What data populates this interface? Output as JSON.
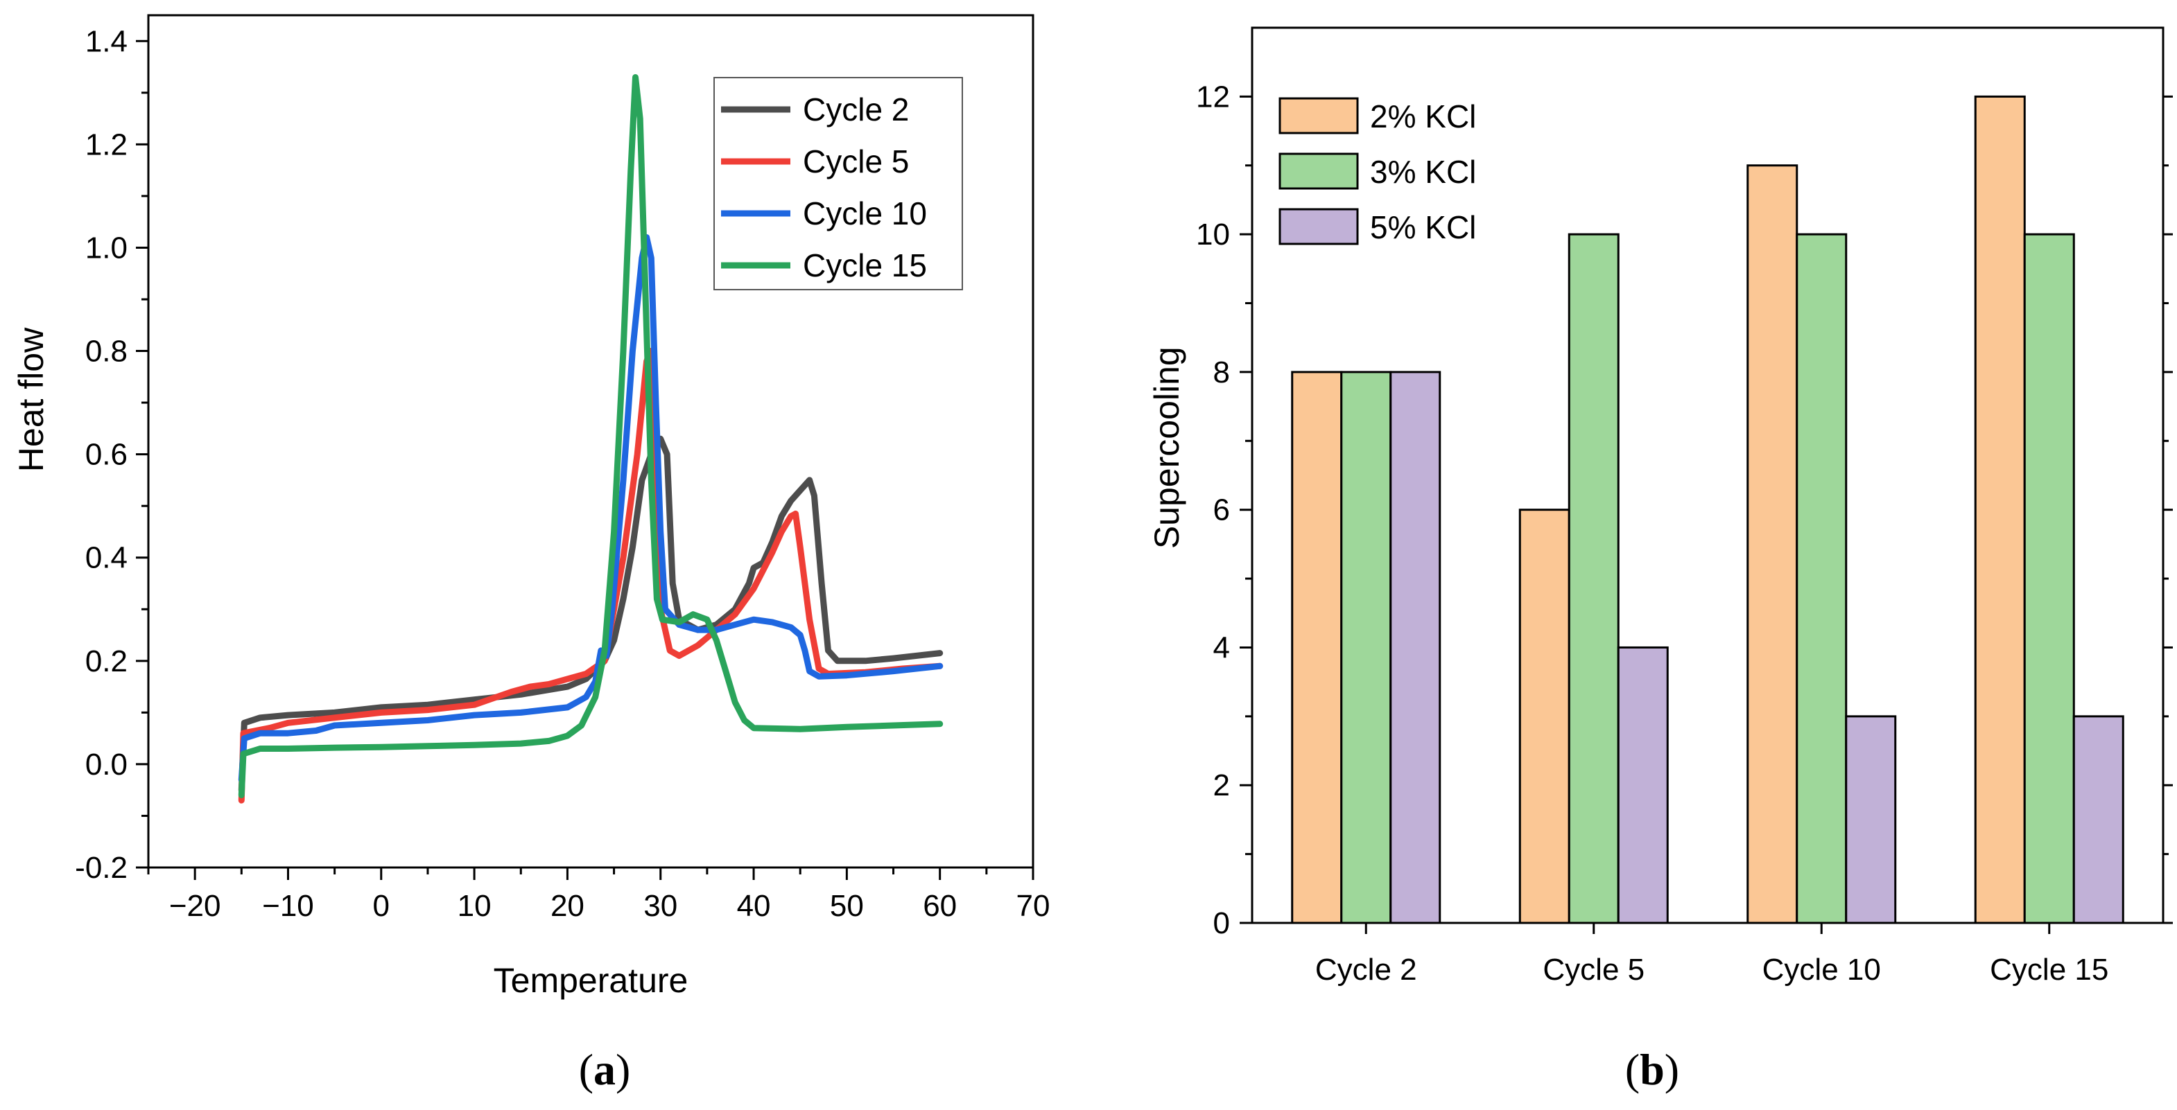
{
  "chart_data": [
    {
      "type": "line",
      "panel_label": {
        "open": "(",
        "letter": "a",
        "close": ")"
      },
      "xlabel": "Temperature",
      "ylabel": "Heat flow",
      "xlim": [
        -25,
        70
      ],
      "ylim": [
        -0.2,
        1.45
      ],
      "xticks": [
        -20,
        -10,
        0,
        10,
        20,
        30,
        40,
        50,
        60,
        70
      ],
      "xtick_labels": [
        "−20",
        "−10",
        "0",
        "10",
        "20",
        "30",
        "40",
        "50",
        "60",
        "70"
      ],
      "yticks": [
        -0.2,
        0.0,
        0.2,
        0.4,
        0.6,
        0.8,
        1.0,
        1.2,
        1.4
      ],
      "ytick_labels": [
        "-0.2",
        "0.0",
        "0.2",
        "0.4",
        "0.6",
        "0.8",
        "1.0",
        "1.2",
        "1.4"
      ],
      "legend_position": "top-right",
      "series": [
        {
          "name": "Cycle 2",
          "color": "#4d4d4d",
          "points": [
            [
              -15,
              -0.05
            ],
            [
              -14.7,
              0.08
            ],
            [
              -13,
              0.09
            ],
            [
              -10,
              0.095
            ],
            [
              -5,
              0.1
            ],
            [
              0,
              0.11
            ],
            [
              5,
              0.115
            ],
            [
              10,
              0.125
            ],
            [
              15,
              0.135
            ],
            [
              20,
              0.15
            ],
            [
              22,
              0.165
            ],
            [
              24,
              0.2
            ],
            [
              25,
              0.24
            ],
            [
              26,
              0.32
            ],
            [
              27,
              0.42
            ],
            [
              28,
              0.55
            ],
            [
              29,
              0.6
            ],
            [
              30,
              0.63
            ],
            [
              30.7,
              0.6
            ],
            [
              31.3,
              0.35
            ],
            [
              32,
              0.28
            ],
            [
              34,
              0.26
            ],
            [
              36,
              0.27
            ],
            [
              38,
              0.3
            ],
            [
              39.5,
              0.35
            ],
            [
              40,
              0.38
            ],
            [
              41,
              0.39
            ],
            [
              42,
              0.43
            ],
            [
              43,
              0.48
            ],
            [
              44,
              0.51
            ],
            [
              45,
              0.53
            ],
            [
              46,
              0.55
            ],
            [
              46.5,
              0.52
            ],
            [
              47.3,
              0.35
            ],
            [
              48,
              0.22
            ],
            [
              49,
              0.2
            ],
            [
              52,
              0.2
            ],
            [
              55,
              0.205
            ],
            [
              60,
              0.215
            ]
          ]
        },
        {
          "name": "Cycle 5",
          "color": "#ef3e36",
          "points": [
            [
              -15,
              -0.07
            ],
            [
              -14.8,
              0.06
            ],
            [
              -12,
              0.07
            ],
            [
              -10,
              0.08
            ],
            [
              -5,
              0.09
            ],
            [
              0,
              0.1
            ],
            [
              5,
              0.105
            ],
            [
              10,
              0.115
            ],
            [
              14,
              0.14
            ],
            [
              16,
              0.15
            ],
            [
              18,
              0.155
            ],
            [
              20,
              0.165
            ],
            [
              22,
              0.175
            ],
            [
              24,
              0.2
            ],
            [
              26,
              0.4
            ],
            [
              27.5,
              0.6
            ],
            [
              28.5,
              0.78
            ],
            [
              28.9,
              0.8
            ],
            [
              29.5,
              0.55
            ],
            [
              30,
              0.3
            ],
            [
              31,
              0.22
            ],
            [
              32,
              0.21
            ],
            [
              34,
              0.23
            ],
            [
              36,
              0.26
            ],
            [
              38,
              0.29
            ],
            [
              40,
              0.34
            ],
            [
              42,
              0.41
            ],
            [
              43,
              0.45
            ],
            [
              44,
              0.48
            ],
            [
              44.5,
              0.485
            ],
            [
              45,
              0.42
            ],
            [
              46,
              0.28
            ],
            [
              47,
              0.185
            ],
            [
              48,
              0.175
            ],
            [
              52,
              0.178
            ],
            [
              56,
              0.185
            ],
            [
              60,
              0.19
            ]
          ]
        },
        {
          "name": "Cycle 10",
          "color": "#1f67e0",
          "points": [
            [
              -15,
              -0.03
            ],
            [
              -14.7,
              0.05
            ],
            [
              -13,
              0.06
            ],
            [
              -10,
              0.06
            ],
            [
              -7,
              0.065
            ],
            [
              -5,
              0.075
            ],
            [
              0,
              0.08
            ],
            [
              5,
              0.085
            ],
            [
              10,
              0.095
            ],
            [
              15,
              0.1
            ],
            [
              20,
              0.11
            ],
            [
              22,
              0.13
            ],
            [
              23,
              0.16
            ],
            [
              23.6,
              0.22
            ],
            [
              24.2,
              0.21
            ],
            [
              24.8,
              0.3
            ],
            [
              26,
              0.55
            ],
            [
              27,
              0.8
            ],
            [
              28,
              0.98
            ],
            [
              28.5,
              1.02
            ],
            [
              29,
              0.98
            ],
            [
              29.5,
              0.7
            ],
            [
              30,
              0.45
            ],
            [
              30.5,
              0.3
            ],
            [
              32,
              0.27
            ],
            [
              34,
              0.26
            ],
            [
              36,
              0.26
            ],
            [
              38,
              0.27
            ],
            [
              40,
              0.28
            ],
            [
              42,
              0.275
            ],
            [
              44,
              0.265
            ],
            [
              45,
              0.25
            ],
            [
              45.5,
              0.22
            ],
            [
              46,
              0.18
            ],
            [
              47,
              0.17
            ],
            [
              50,
              0.172
            ],
            [
              55,
              0.18
            ],
            [
              60,
              0.19
            ]
          ]
        },
        {
          "name": "Cycle 15",
          "color": "#2aa45b",
          "points": [
            [
              -15,
              -0.06
            ],
            [
              -14.8,
              0.02
            ],
            [
              -13,
              0.03
            ],
            [
              -10,
              0.03
            ],
            [
              -5,
              0.032
            ],
            [
              0,
              0.033
            ],
            [
              5,
              0.035
            ],
            [
              10,
              0.037
            ],
            [
              15,
              0.04
            ],
            [
              18,
              0.045
            ],
            [
              20,
              0.055
            ],
            [
              21.5,
              0.075
            ],
            [
              23,
              0.13
            ],
            [
              24,
              0.22
            ],
            [
              25,
              0.45
            ],
            [
              26,
              0.8
            ],
            [
              26.8,
              1.15
            ],
            [
              27.3,
              1.33
            ],
            [
              27.8,
              1.25
            ],
            [
              28.4,
              0.9
            ],
            [
              29,
              0.55
            ],
            [
              29.6,
              0.32
            ],
            [
              30.2,
              0.28
            ],
            [
              32,
              0.275
            ],
            [
              33.5,
              0.29
            ],
            [
              35,
              0.28
            ],
            [
              36,
              0.24
            ],
            [
              37,
              0.18
            ],
            [
              38,
              0.12
            ],
            [
              39,
              0.085
            ],
            [
              40,
              0.07
            ],
            [
              45,
              0.068
            ],
            [
              50,
              0.072
            ],
            [
              55,
              0.075
            ],
            [
              60,
              0.078
            ]
          ]
        }
      ]
    },
    {
      "type": "bar",
      "panel_label": {
        "open": "(",
        "letter": "b",
        "close": ")"
      },
      "xlabel": "",
      "ylabel": "Supercooling",
      "ylim": [
        0,
        13
      ],
      "yticks": [
        0,
        2,
        4,
        6,
        8,
        10,
        12
      ],
      "ytick_labels": [
        "0",
        "2",
        "4",
        "6",
        "8",
        "10",
        "12"
      ],
      "categories": [
        "Cycle 2",
        "Cycle 5",
        "Cycle 10",
        "Cycle 15"
      ],
      "legend_position": "top-left",
      "series": [
        {
          "name": "2% KCl",
          "color": "#fbc795",
          "values": [
            8,
            6,
            11,
            12
          ]
        },
        {
          "name": "3% KCl",
          "color": "#9ed79a",
          "values": [
            8,
            10,
            10,
            10
          ]
        },
        {
          "name": "5% KCl",
          "color": "#c1b1d7",
          "values": [
            8,
            4,
            3,
            3
          ]
        }
      ]
    }
  ]
}
